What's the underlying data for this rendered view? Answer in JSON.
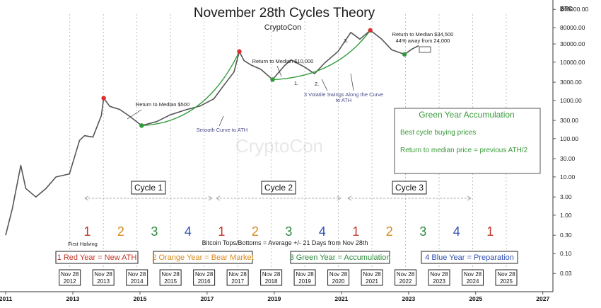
{
  "chart_data": {
    "type": "line",
    "title": "November 28th Cycles Theory",
    "subtitle": "CryptoCon",
    "watermark": "CryptoCon",
    "y_axis_unit": "BTC",
    "y_scale": "log",
    "ylim": [
      0.01,
      300000
    ],
    "xlim": [
      2011.0,
      2027.3
    ],
    "x_ticks": [
      "2011",
      "2013",
      "2015",
      "2017",
      "2019",
      "2021",
      "2023",
      "2025",
      "2027"
    ],
    "y_ticks": [
      "240000.00",
      "80000.00",
      "30000.00",
      "10000.00",
      "3000.00",
      "1000.00",
      "300.00",
      "100.00",
      "30.00",
      "10.00",
      "3.00",
      "1.00",
      "0.30",
      "0.10",
      "0.03"
    ],
    "series": [
      {
        "x": [
          2011.0,
          2011.2,
          2011.45,
          2011.6,
          2011.9,
          2012.2,
          2012.5,
          2012.9,
          2013.2,
          2013.35,
          2013.6,
          2013.85,
          2013.92,
          2014.1,
          2014.4,
          2014.7,
          2015.05,
          2015.5,
          2015.9,
          2016.4,
          2016.8,
          2017.2,
          2017.5,
          2017.8,
          2017.96,
          2018.1,
          2018.3,
          2018.6,
          2018.95,
          2019.3,
          2019.5,
          2019.9,
          2020.2,
          2020.5,
          2020.9,
          2021.28,
          2021.55,
          2021.86,
          2022.2,
          2022.5,
          2022.88,
          2023.1,
          2023.3
        ],
        "y": [
          0.3,
          1.5,
          20,
          5,
          3,
          5,
          10,
          12,
          90,
          120,
          110,
          400,
          1150,
          700,
          580,
          380,
          220,
          280,
          420,
          580,
          720,
          1100,
          2500,
          5500,
          19000,
          11000,
          8500,
          6500,
          3500,
          8000,
          11500,
          7500,
          5000,
          9500,
          19000,
          60000,
          40000,
          68000,
          40000,
          21000,
          16000,
          22000,
          27000
        ]
      }
    ],
    "markers": [
      {
        "type": "top",
        "x": 2013.92,
        "y": 1150
      },
      {
        "type": "top",
        "x": 2017.96,
        "y": 19000
      },
      {
        "type": "top",
        "x": 2021.86,
        "y": 68000
      },
      {
        "type": "bottom",
        "x": 2015.05,
        "y": 220
      },
      {
        "type": "bottom",
        "x": 2018.95,
        "y": 3500
      },
      {
        "type": "bottom",
        "x": 2022.88,
        "y": 16000
      }
    ],
    "annotations": [
      {
        "text": "Return to Median $500"
      },
      {
        "text": "Smooth Curve to ATH"
      },
      {
        "text": "Return to Median $10,000"
      },
      {
        "text": "3 Volatile Swings Along the Curve"
      },
      {
        "text": "to ATH"
      },
      {
        "text": "Return to Median $34,500"
      },
      {
        "text": "44% away from 24,000"
      },
      {
        "text": "First Halving"
      },
      {
        "text": "Bitcoin Tops/Bottoms = Average +/- 21 Days from Nov 28th"
      }
    ],
    "swing_labels": [
      "1.",
      "2.",
      "3."
    ],
    "cycles": [
      "Cycle 1",
      "Cycle 2",
      "Cycle 3"
    ],
    "year_numbers": [
      "1",
      "2",
      "3",
      "4",
      "1",
      "2",
      "3",
      "4",
      "1",
      "2",
      "3",
      "4",
      "1"
    ],
    "year_phases": [
      {
        "label": "1 Red Year = New ATH",
        "color": "#c0392b"
      },
      {
        "label": "2 Orange Year = Bear Market",
        "color": "#d68a1c"
      },
      {
        "label": "3 Green Year = Accumulation",
        "color": "#2e8b3e"
      },
      {
        "label": "4 Blue Year = Preparation",
        "color": "#3050b0"
      }
    ],
    "nov28_dates": [
      [
        "Nov 28",
        "2012"
      ],
      [
        "Nov 28",
        "2013"
      ],
      [
        "Nov 28",
        "2014"
      ],
      [
        "Nov 28",
        "2015"
      ],
      [
        "Nov 28",
        "2016"
      ],
      [
        "Nov 28",
        "2017"
      ],
      [
        "Nov 28",
        "2018"
      ],
      [
        "Nov 28",
        "2019"
      ],
      [
        "Nov 28",
        "2020"
      ],
      [
        "Nov 28",
        "2021"
      ],
      [
        "Nov 28",
        "2022"
      ],
      [
        "Nov 28",
        "2023"
      ],
      [
        "Nov 28",
        "2024"
      ],
      [
        "Nov 28",
        "2025"
      ]
    ],
    "info_box": {
      "title": "Green Year Accumulation",
      "line1": "Best cycle buying prices",
      "line2": "Return to median price = previous ATH/2"
    },
    "colors": {
      "price": "#555555",
      "top_marker": "#d93030",
      "bottom_marker": "#2e9a3a",
      "curve": "#2e9a3a",
      "num_colors": [
        "#c0392b",
        "#d68a1c",
        "#2e8b3e",
        "#3050b0"
      ]
    }
  }
}
